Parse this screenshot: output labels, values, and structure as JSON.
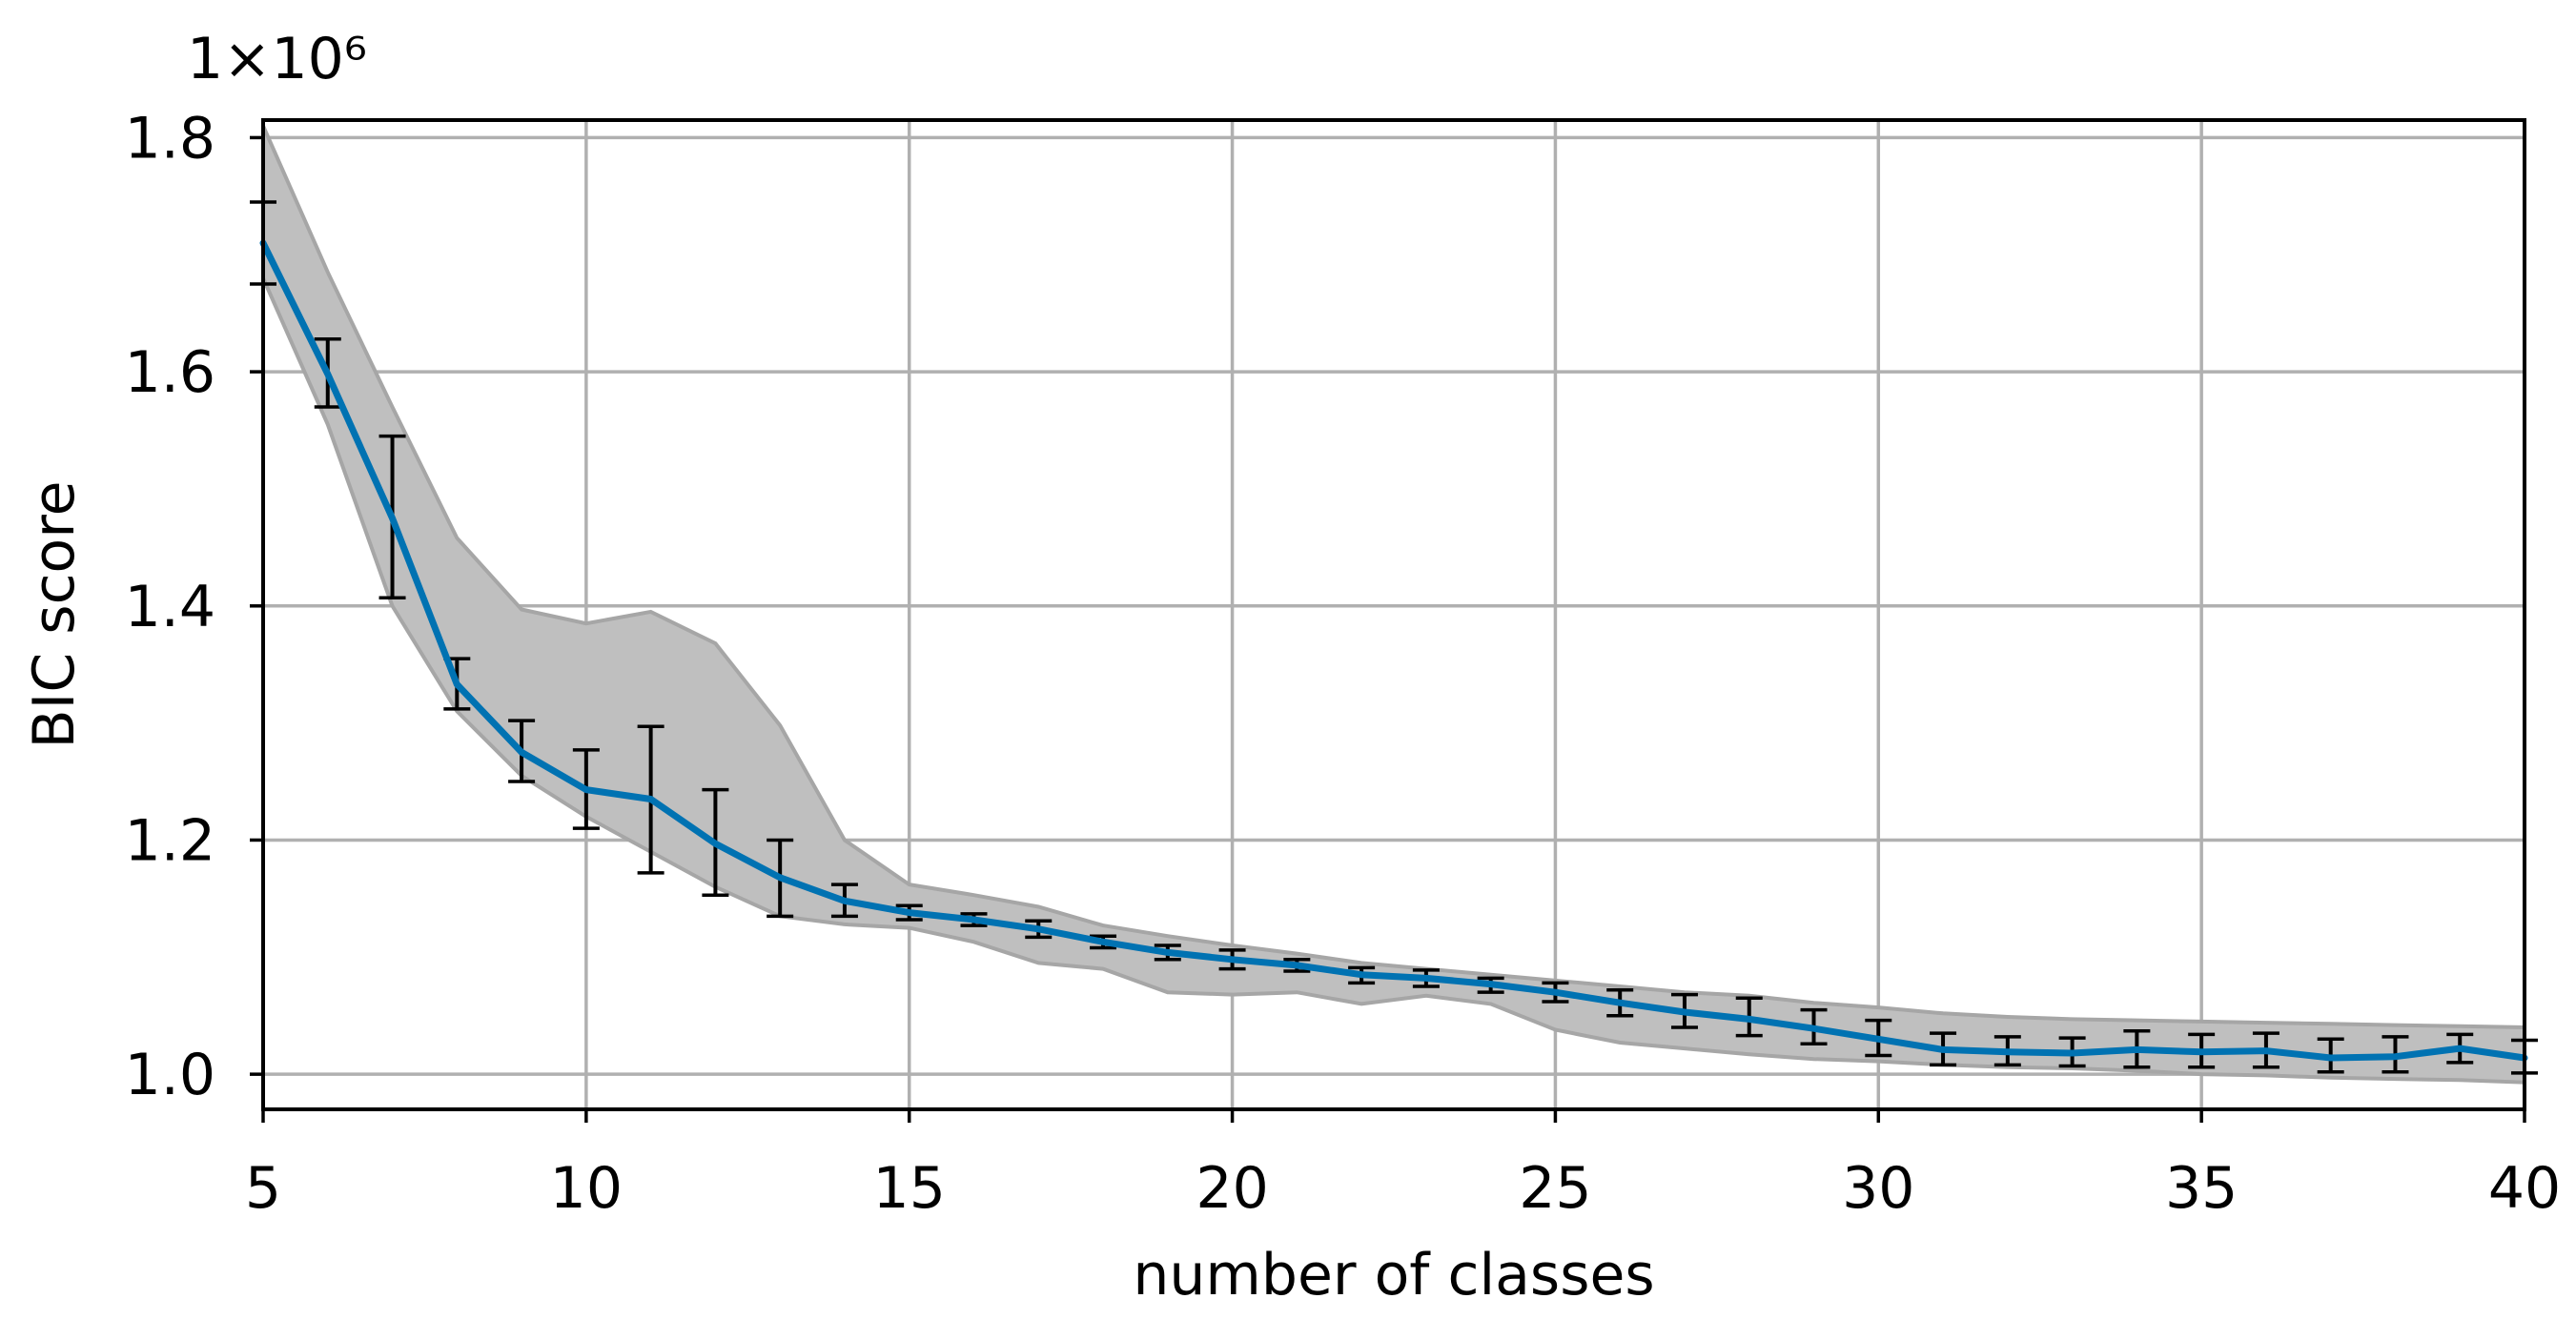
{
  "chart_data": {
    "type": "line",
    "xlabel": "number of classes",
    "ylabel": "BIC score",
    "scale_factor_text": "1×10⁶",
    "xlim": [
      5,
      40
    ],
    "ylim": [
      0.97,
      1.815
    ],
    "x_ticks": [
      "5",
      "10",
      "15",
      "20",
      "25",
      "30",
      "35",
      "40"
    ],
    "y_ticks": [
      "1.0",
      "1.2",
      "1.4",
      "1.6",
      "1.8"
    ],
    "grid": true,
    "colors": {
      "line": "#0072b2",
      "band_fill": "#bfbfbf",
      "band_edge": "#a6a6a6",
      "error_bar": "#000000",
      "grid": "#b0b0b0"
    },
    "series": [
      {
        "type": "line",
        "x": [
          5,
          6,
          7,
          8,
          9,
          10,
          11,
          12,
          13,
          14,
          15,
          16,
          17,
          18,
          19,
          20,
          21,
          22,
          23,
          24,
          25,
          26,
          27,
          28,
          29,
          30,
          31,
          32,
          33,
          34,
          35,
          36,
          37,
          38,
          39,
          40
        ],
        "values": [
          1.71,
          1.598,
          1.475,
          1.333,
          1.275,
          1.243,
          1.235,
          1.197,
          1.168,
          1.148,
          1.138,
          1.132,
          1.124,
          1.113,
          1.104,
          1.098,
          1.093,
          1.085,
          1.082,
          1.077,
          1.07,
          1.061,
          1.053,
          1.047,
          1.039,
          1.03,
          1.021,
          1.019,
          1.018,
          1.021,
          1.019,
          1.02,
          1.014,
          1.015,
          1.022,
          1.014
        ]
      },
      {
        "type": "band",
        "x": [
          5,
          6,
          7,
          8,
          9,
          10,
          11,
          12,
          13,
          14,
          15,
          16,
          17,
          18,
          19,
          20,
          21,
          22,
          23,
          24,
          25,
          26,
          27,
          28,
          29,
          30,
          31,
          32,
          33,
          34,
          35,
          36,
          37,
          38,
          39,
          40
        ],
        "upper": [
          1.81,
          1.685,
          1.57,
          1.458,
          1.397,
          1.385,
          1.395,
          1.368,
          1.298,
          1.2,
          1.162,
          1.153,
          1.143,
          1.127,
          1.118,
          1.11,
          1.103,
          1.095,
          1.09,
          1.085,
          1.08,
          1.075,
          1.07,
          1.067,
          1.061,
          1.057,
          1.052,
          1.049,
          1.047,
          1.046,
          1.045,
          1.044,
          1.043,
          1.042,
          1.041,
          1.04
        ],
        "lower": [
          1.68,
          1.555,
          1.4,
          1.31,
          1.255,
          1.22,
          1.19,
          1.16,
          1.135,
          1.128,
          1.125,
          1.113,
          1.095,
          1.09,
          1.07,
          1.068,
          1.07,
          1.06,
          1.067,
          1.06,
          1.038,
          1.027,
          1.022,
          1.017,
          1.013,
          1.011,
          1.008,
          1.006,
          1.005,
          1.003,
          1.0,
          0.999,
          0.997,
          0.996,
          0.995,
          0.993
        ]
      },
      {
        "type": "error_bars",
        "x": [
          5,
          6,
          7,
          8,
          9,
          10,
          11,
          12,
          13,
          14,
          15,
          16,
          17,
          18,
          19,
          20,
          21,
          22,
          23,
          24,
          25,
          26,
          27,
          28,
          29,
          30,
          31,
          32,
          33,
          34,
          35,
          36,
          37,
          38,
          39,
          40
        ],
        "lower": [
          1.675,
          1.57,
          1.407,
          1.312,
          1.25,
          1.21,
          1.172,
          1.153,
          1.135,
          1.135,
          1.132,
          1.127,
          1.117,
          1.108,
          1.098,
          1.09,
          1.088,
          1.078,
          1.075,
          1.07,
          1.062,
          1.05,
          1.04,
          1.033,
          1.026,
          1.016,
          1.008,
          1.008,
          1.007,
          1.006,
          1.006,
          1.006,
          1.002,
          1.002,
          1.01,
          1.001
        ],
        "upper": [
          1.745,
          1.628,
          1.545,
          1.355,
          1.302,
          1.277,
          1.297,
          1.243,
          1.2,
          1.162,
          1.144,
          1.137,
          1.131,
          1.118,
          1.11,
          1.106,
          1.098,
          1.091,
          1.089,
          1.082,
          1.078,
          1.072,
          1.068,
          1.065,
          1.055,
          1.046,
          1.035,
          1.032,
          1.031,
          1.037,
          1.034,
          1.035,
          1.03,
          1.032,
          1.034,
          1.029
        ]
      }
    ]
  }
}
